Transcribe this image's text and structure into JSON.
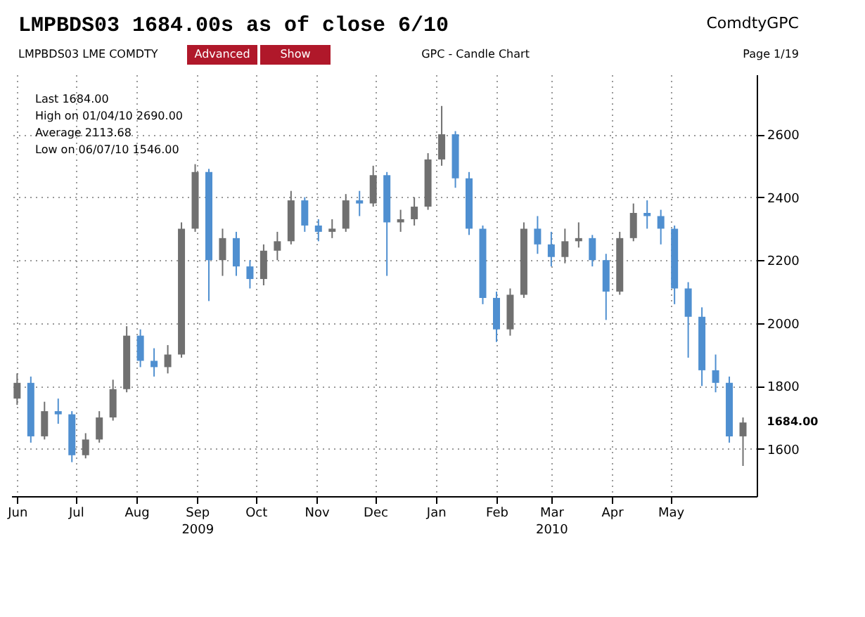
{
  "chart_data": {
    "type": "candlestick",
    "title": "LMPBDS03   1684.00s as of close 6/10",
    "annotations": [
      "ComdtyGPC",
      "LMPBDS03 LME COMDTY",
      "Advanced",
      "Show",
      "GPC - Candle Chart",
      "Page 1/19",
      "Last   1684.00",
      "High on 01/04/10   2690.00",
      "Average   2113.68",
      "Low on 06/07/10   1546.00",
      {
        "text": "1684.00",
        "x": "2010-06-07",
        "y": 1684
      }
    ],
    "x": [
      "2009-06-01",
      "2009-06-08",
      "2009-06-15",
      "2009-06-22",
      "2009-06-29",
      "2009-07-06",
      "2009-07-13",
      "2009-07-20",
      "2009-07-27",
      "2009-08-03",
      "2009-08-10",
      "2009-08-17",
      "2009-08-24",
      "2009-08-31",
      "2009-09-07",
      "2009-09-14",
      "2009-09-21",
      "2009-09-28",
      "2009-10-05",
      "2009-10-12",
      "2009-10-19",
      "2009-10-26",
      "2009-11-02",
      "2009-11-09",
      "2009-11-16",
      "2009-11-23",
      "2009-11-30",
      "2009-12-07",
      "2009-12-14",
      "2009-12-21",
      "2009-12-28",
      "2010-01-04",
      "2010-01-11",
      "2010-01-18",
      "2010-01-25",
      "2010-02-01",
      "2010-02-08",
      "2010-02-15",
      "2010-02-22",
      "2010-03-01",
      "2010-03-08",
      "2010-03-15",
      "2010-03-22",
      "2010-03-29",
      "2010-04-05",
      "2010-04-12",
      "2010-04-19",
      "2010-04-26",
      "2010-05-03",
      "2010-05-10",
      "2010-05-17",
      "2010-05-24",
      "2010-05-31",
      "2010-06-07"
    ],
    "ohlc": [
      [
        1760,
        1840,
        1740,
        1810
      ],
      [
        1810,
        1830,
        1620,
        1640
      ],
      [
        1640,
        1750,
        1630,
        1720
      ],
      [
        1720,
        1760,
        1680,
        1710
      ],
      [
        1710,
        1720,
        1558,
        1580
      ],
      [
        1580,
        1650,
        1570,
        1630
      ],
      [
        1630,
        1720,
        1620,
        1700
      ],
      [
        1700,
        1820,
        1690,
        1790
      ],
      [
        1790,
        1990,
        1780,
        1960
      ],
      [
        1960,
        1980,
        1860,
        1880
      ],
      [
        1880,
        1920,
        1830,
        1860
      ],
      [
        1860,
        1930,
        1840,
        1900
      ],
      [
        1900,
        2320,
        1890,
        2300
      ],
      [
        2300,
        2505,
        2290,
        2480
      ],
      [
        2480,
        2490,
        2070,
        2200
      ],
      [
        2200,
        2300,
        2150,
        2270
      ],
      [
        2270,
        2290,
        2150,
        2180
      ],
      [
        2180,
        2200,
        2110,
        2140
      ],
      [
        2140,
        2250,
        2120,
        2230
      ],
      [
        2230,
        2290,
        2200,
        2260
      ],
      [
        2260,
        2420,
        2250,
        2390
      ],
      [
        2390,
        2400,
        2290,
        2310
      ],
      [
        2310,
        2330,
        2260,
        2290
      ],
      [
        2290,
        2330,
        2270,
        2300
      ],
      [
        2300,
        2410,
        2290,
        2390
      ],
      [
        2390,
        2420,
        2340,
        2380
      ],
      [
        2380,
        2500,
        2370,
        2470
      ],
      [
        2470,
        2480,
        2150,
        2320
      ],
      [
        2320,
        2360,
        2290,
        2330
      ],
      [
        2330,
        2400,
        2310,
        2370
      ],
      [
        2370,
        2540,
        2360,
        2520
      ],
      [
        2520,
        2690,
        2500,
        2600
      ],
      [
        2600,
        2610,
        2430,
        2460
      ],
      [
        2460,
        2480,
        2280,
        2300
      ],
      [
        2300,
        2310,
        2060,
        2080
      ],
      [
        2080,
        2100,
        1940,
        1980
      ],
      [
        1980,
        2110,
        1960,
        2090
      ],
      [
        2090,
        2320,
        2080,
        2300
      ],
      [
        2300,
        2340,
        2220,
        2250
      ],
      [
        2250,
        2290,
        2180,
        2210
      ],
      [
        2210,
        2300,
        2190,
        2260
      ],
      [
        2260,
        2320,
        2240,
        2270
      ],
      [
        2270,
        2280,
        2180,
        2200
      ],
      [
        2200,
        2220,
        2010,
        2100
      ],
      [
        2100,
        2290,
        2090,
        2270
      ],
      [
        2270,
        2380,
        2260,
        2350
      ],
      [
        2350,
        2390,
        2300,
        2340
      ],
      [
        2340,
        2360,
        2250,
        2300
      ],
      [
        2300,
        2310,
        2060,
        2110
      ],
      [
        2110,
        2130,
        1890,
        2020
      ],
      [
        2020,
        2050,
        1800,
        1850
      ],
      [
        1850,
        1900,
        1780,
        1810
      ],
      [
        1810,
        1830,
        1620,
        1640
      ],
      [
        1640,
        1700,
        1546,
        1684
      ]
    ],
    "colors": [
      "#707070",
      "#4f8fd0",
      "#707070",
      "#4f8fd0",
      "#4f8fd0",
      "#707070",
      "#707070",
      "#707070",
      "#707070",
      "#4f8fd0",
      "#4f8fd0",
      "#707070",
      "#707070",
      "#707070",
      "#4f8fd0",
      "#707070",
      "#4f8fd0",
      "#4f8fd0",
      "#707070",
      "#707070",
      "#707070",
      "#4f8fd0",
      "#4f8fd0",
      "#707070",
      "#707070",
      "#4f8fd0",
      "#707070",
      "#4f8fd0",
      "#707070",
      "#707070",
      "#707070",
      "#707070",
      "#4f8fd0",
      "#4f8fd0",
      "#4f8fd0",
      "#4f8fd0",
      "#707070",
      "#707070",
      "#4f8fd0",
      "#4f8fd0",
      "#707070",
      "#707070",
      "#4f8fd0",
      "#4f8fd0",
      "#707070",
      "#707070",
      "#4f8fd0",
      "#4f8fd0",
      "#4f8fd0",
      "#4f8fd0",
      "#4f8fd0",
      "#4f8fd0",
      "#4f8fd0",
      "#707070"
    ],
    "xlim": [
      "2009-05-29",
      "2010-06-14"
    ],
    "xticks": [
      {
        "value": "2009-06-01",
        "label": "Jun"
      },
      {
        "value": "2009-07-01",
        "label": "Jul"
      },
      {
        "value": "2009-08-01",
        "label": "Aug"
      },
      {
        "value": "2009-09-01",
        "label": "Sep\n2009"
      },
      {
        "value": "2009-10-01",
        "label": "Oct"
      },
      {
        "value": "2009-11-01",
        "label": "Nov"
      },
      {
        "value": "2009-12-01",
        "label": "Dec"
      },
      {
        "value": "2010-01-01",
        "label": "Jan"
      },
      {
        "value": "2010-02-01",
        "label": "Feb"
      },
      {
        "value": "2010-03-01",
        "label": "Mar\n2010"
      },
      {
        "value": "2010-04-01",
        "label": "Apr"
      },
      {
        "value": "2010-05-01",
        "label": "May"
      }
    ],
    "ylim": [
      1450,
      2790
    ],
    "yticks": [
      1600,
      1800,
      2000,
      2200,
      2400,
      2600
    ],
    "grid": true
  }
}
